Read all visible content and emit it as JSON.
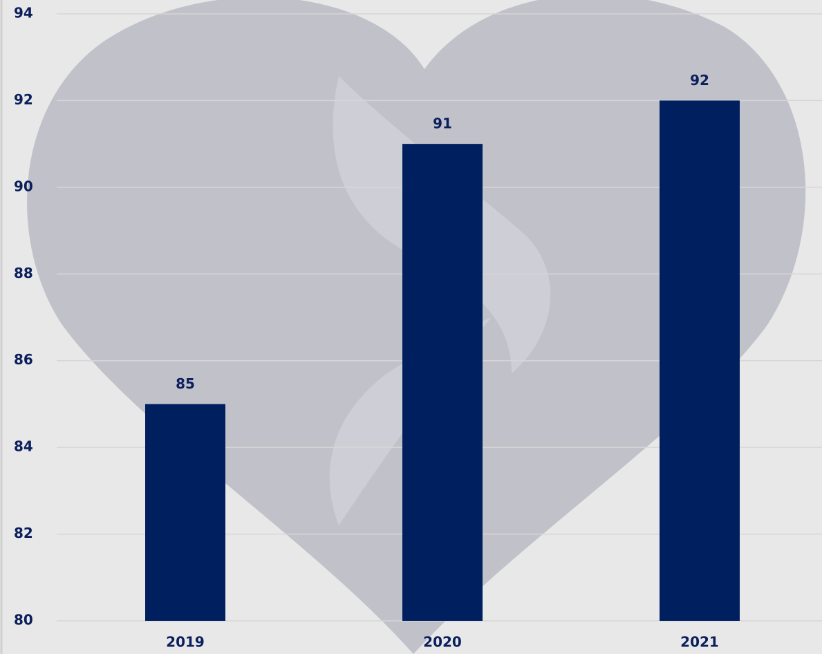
{
  "chart_data": {
    "type": "bar",
    "categories": [
      "2019",
      "2020",
      "2021"
    ],
    "values": [
      85,
      91,
      92
    ],
    "color": "#001f5f",
    "ylim": [
      80,
      94
    ],
    "yticks": [
      80,
      82,
      84,
      86,
      88,
      90,
      92,
      94
    ],
    "grid": true
  }
}
